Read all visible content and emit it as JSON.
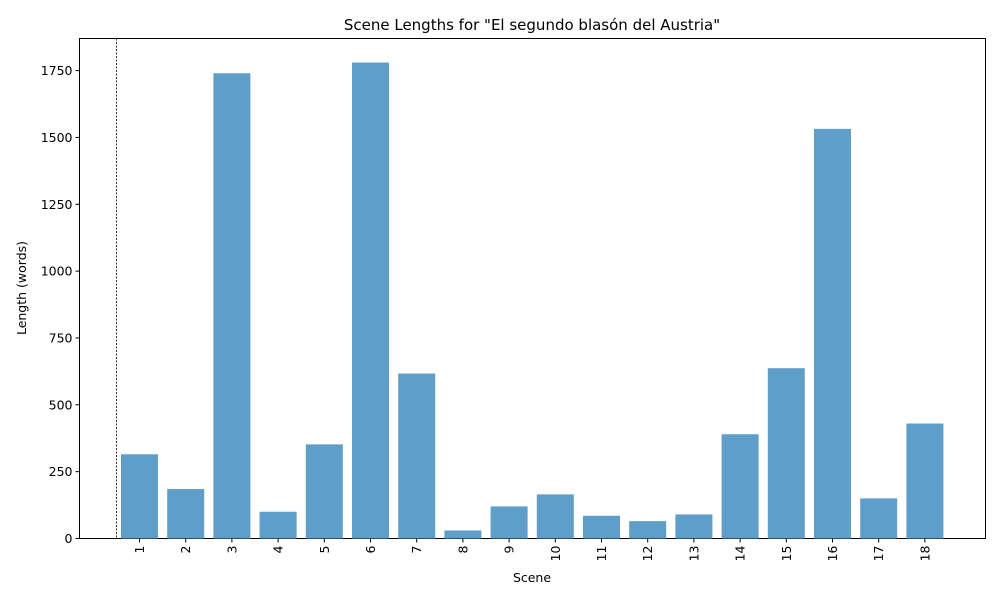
{
  "chart_data": {
    "type": "bar",
    "title": "Scene Lengths for \"El segundo blasón del Austria\"",
    "xlabel": "Scene",
    "ylabel": "Length (words)",
    "categories": [
      "1",
      "2",
      "3",
      "4",
      "5",
      "6",
      "7",
      "8",
      "9",
      "10",
      "11",
      "12",
      "13",
      "14",
      "15",
      "16",
      "17",
      "18"
    ],
    "values": [
      315,
      185,
      1740,
      100,
      352,
      1780,
      617,
      30,
      120,
      165,
      85,
      65,
      90,
      390,
      637,
      1532,
      150,
      430
    ],
    "ylim": [
      0,
      1870
    ],
    "yticks": [
      0,
      250,
      500,
      750,
      1000,
      1250,
      1500,
      1750
    ],
    "bar_color": "#5f9ec9",
    "vline_color": "#000000",
    "grid": false,
    "legend": "none"
  }
}
